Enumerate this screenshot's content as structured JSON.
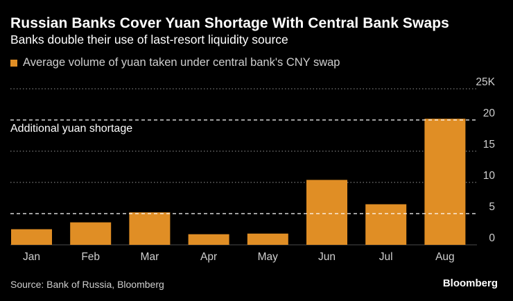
{
  "header": {
    "title": "Russian Banks Cover Yuan Shortage With Central Bank Swaps",
    "subtitle": "Banks double their use of last-resort liquidity source"
  },
  "footer": {
    "source": "Source: Bank of Russia, Bloomberg",
    "brand": "Bloomberg"
  },
  "colors": {
    "bar": "#e08e25",
    "background": "#000000",
    "grid": "#9a9a9a",
    "reference_line": "#ffffff",
    "text_muted": "#cfcfcf"
  },
  "chart_data": {
    "type": "bar",
    "categories": [
      "Jan",
      "Feb",
      "Mar",
      "Apr",
      "May",
      "Jun",
      "Jul",
      "Aug"
    ],
    "series": [
      {
        "name": "Average volume of yuan taken under central bank's CNY swap",
        "values": [
          2.5,
          3.6,
          5.2,
          1.7,
          1.8,
          10.4,
          6.5,
          20.2
        ]
      }
    ],
    "y_ticks": [
      0,
      5,
      10,
      15,
      20,
      25
    ],
    "y_tick_labels": [
      "0",
      "5",
      "10",
      "15",
      "20",
      "25K"
    ],
    "ylim": [
      0,
      25
    ],
    "reference_lines": [
      {
        "value": 20,
        "label": "Additional yuan shortage"
      },
      {
        "value": 5,
        "label": ""
      }
    ],
    "xlabel": "",
    "ylabel": "",
    "grid": true,
    "legend_position": "top-left"
  }
}
